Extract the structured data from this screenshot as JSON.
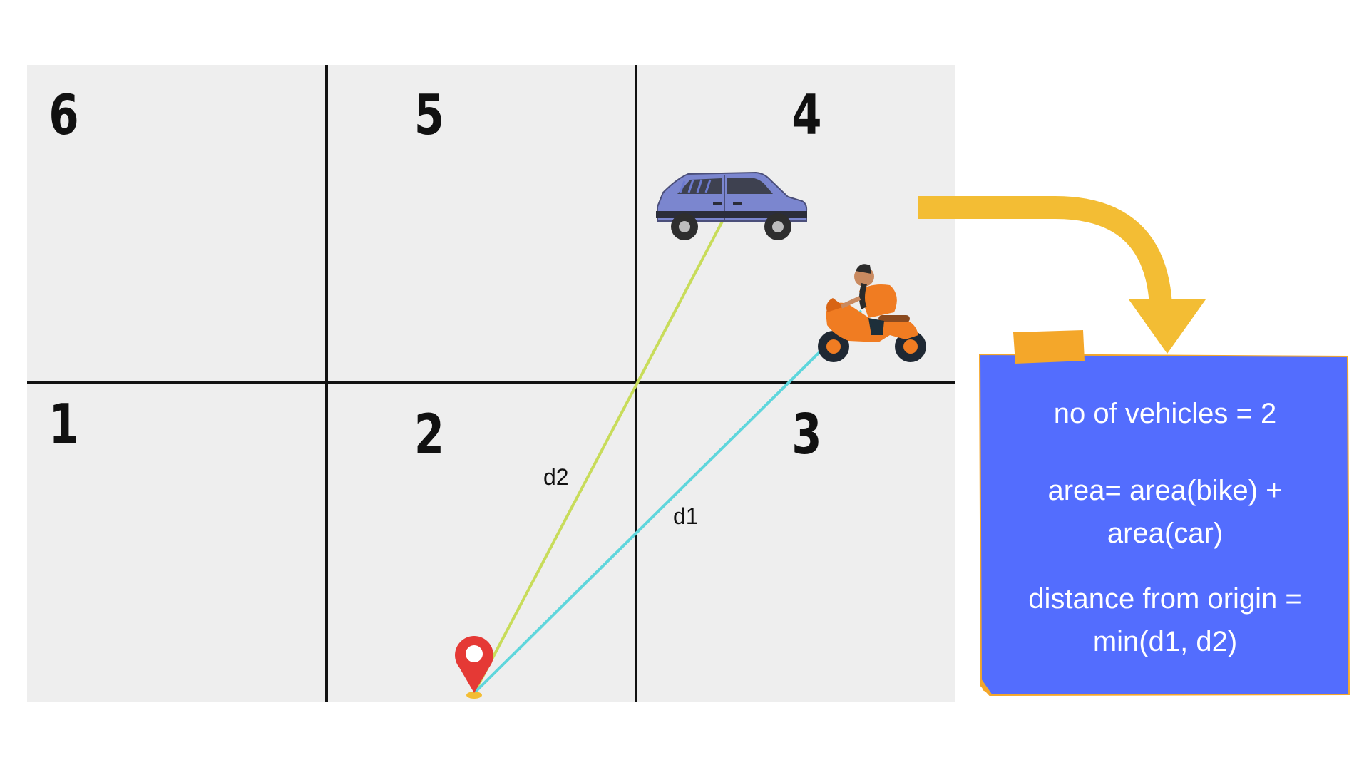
{
  "grid": {
    "zones": [
      {
        "id": "6",
        "label": "6"
      },
      {
        "id": "5",
        "label": "5"
      },
      {
        "id": "4",
        "label": "4"
      },
      {
        "id": "1",
        "label": "1"
      },
      {
        "id": "2",
        "label": "2"
      },
      {
        "id": "3",
        "label": "3"
      }
    ]
  },
  "distances": {
    "d1_label": "d1",
    "d2_label": "d2"
  },
  "note": {
    "vehicles_line": "no of vehicles = 2",
    "area_line1": "area= area(bike) +",
    "area_line2": "area(car)",
    "distance_line1": "distance from origin =",
    "distance_line2": "min(d1, d2)"
  },
  "icons": {
    "car": "car-icon",
    "bike": "motorbike-rider-icon",
    "origin": "location-pin-icon",
    "arrow": "curved-arrow-icon"
  },
  "colors": {
    "grid_bg": "#eeeeee",
    "grid_lines": "#111111",
    "line_d1": "#5fd6dc",
    "line_d2": "#c8dc5a",
    "note_bg": "#536dfe",
    "note_tape": "#f4a72a",
    "arrow": "#f3bd34",
    "pin": "#e53935",
    "car": "#7b86cf",
    "bike": "#f07c22"
  }
}
